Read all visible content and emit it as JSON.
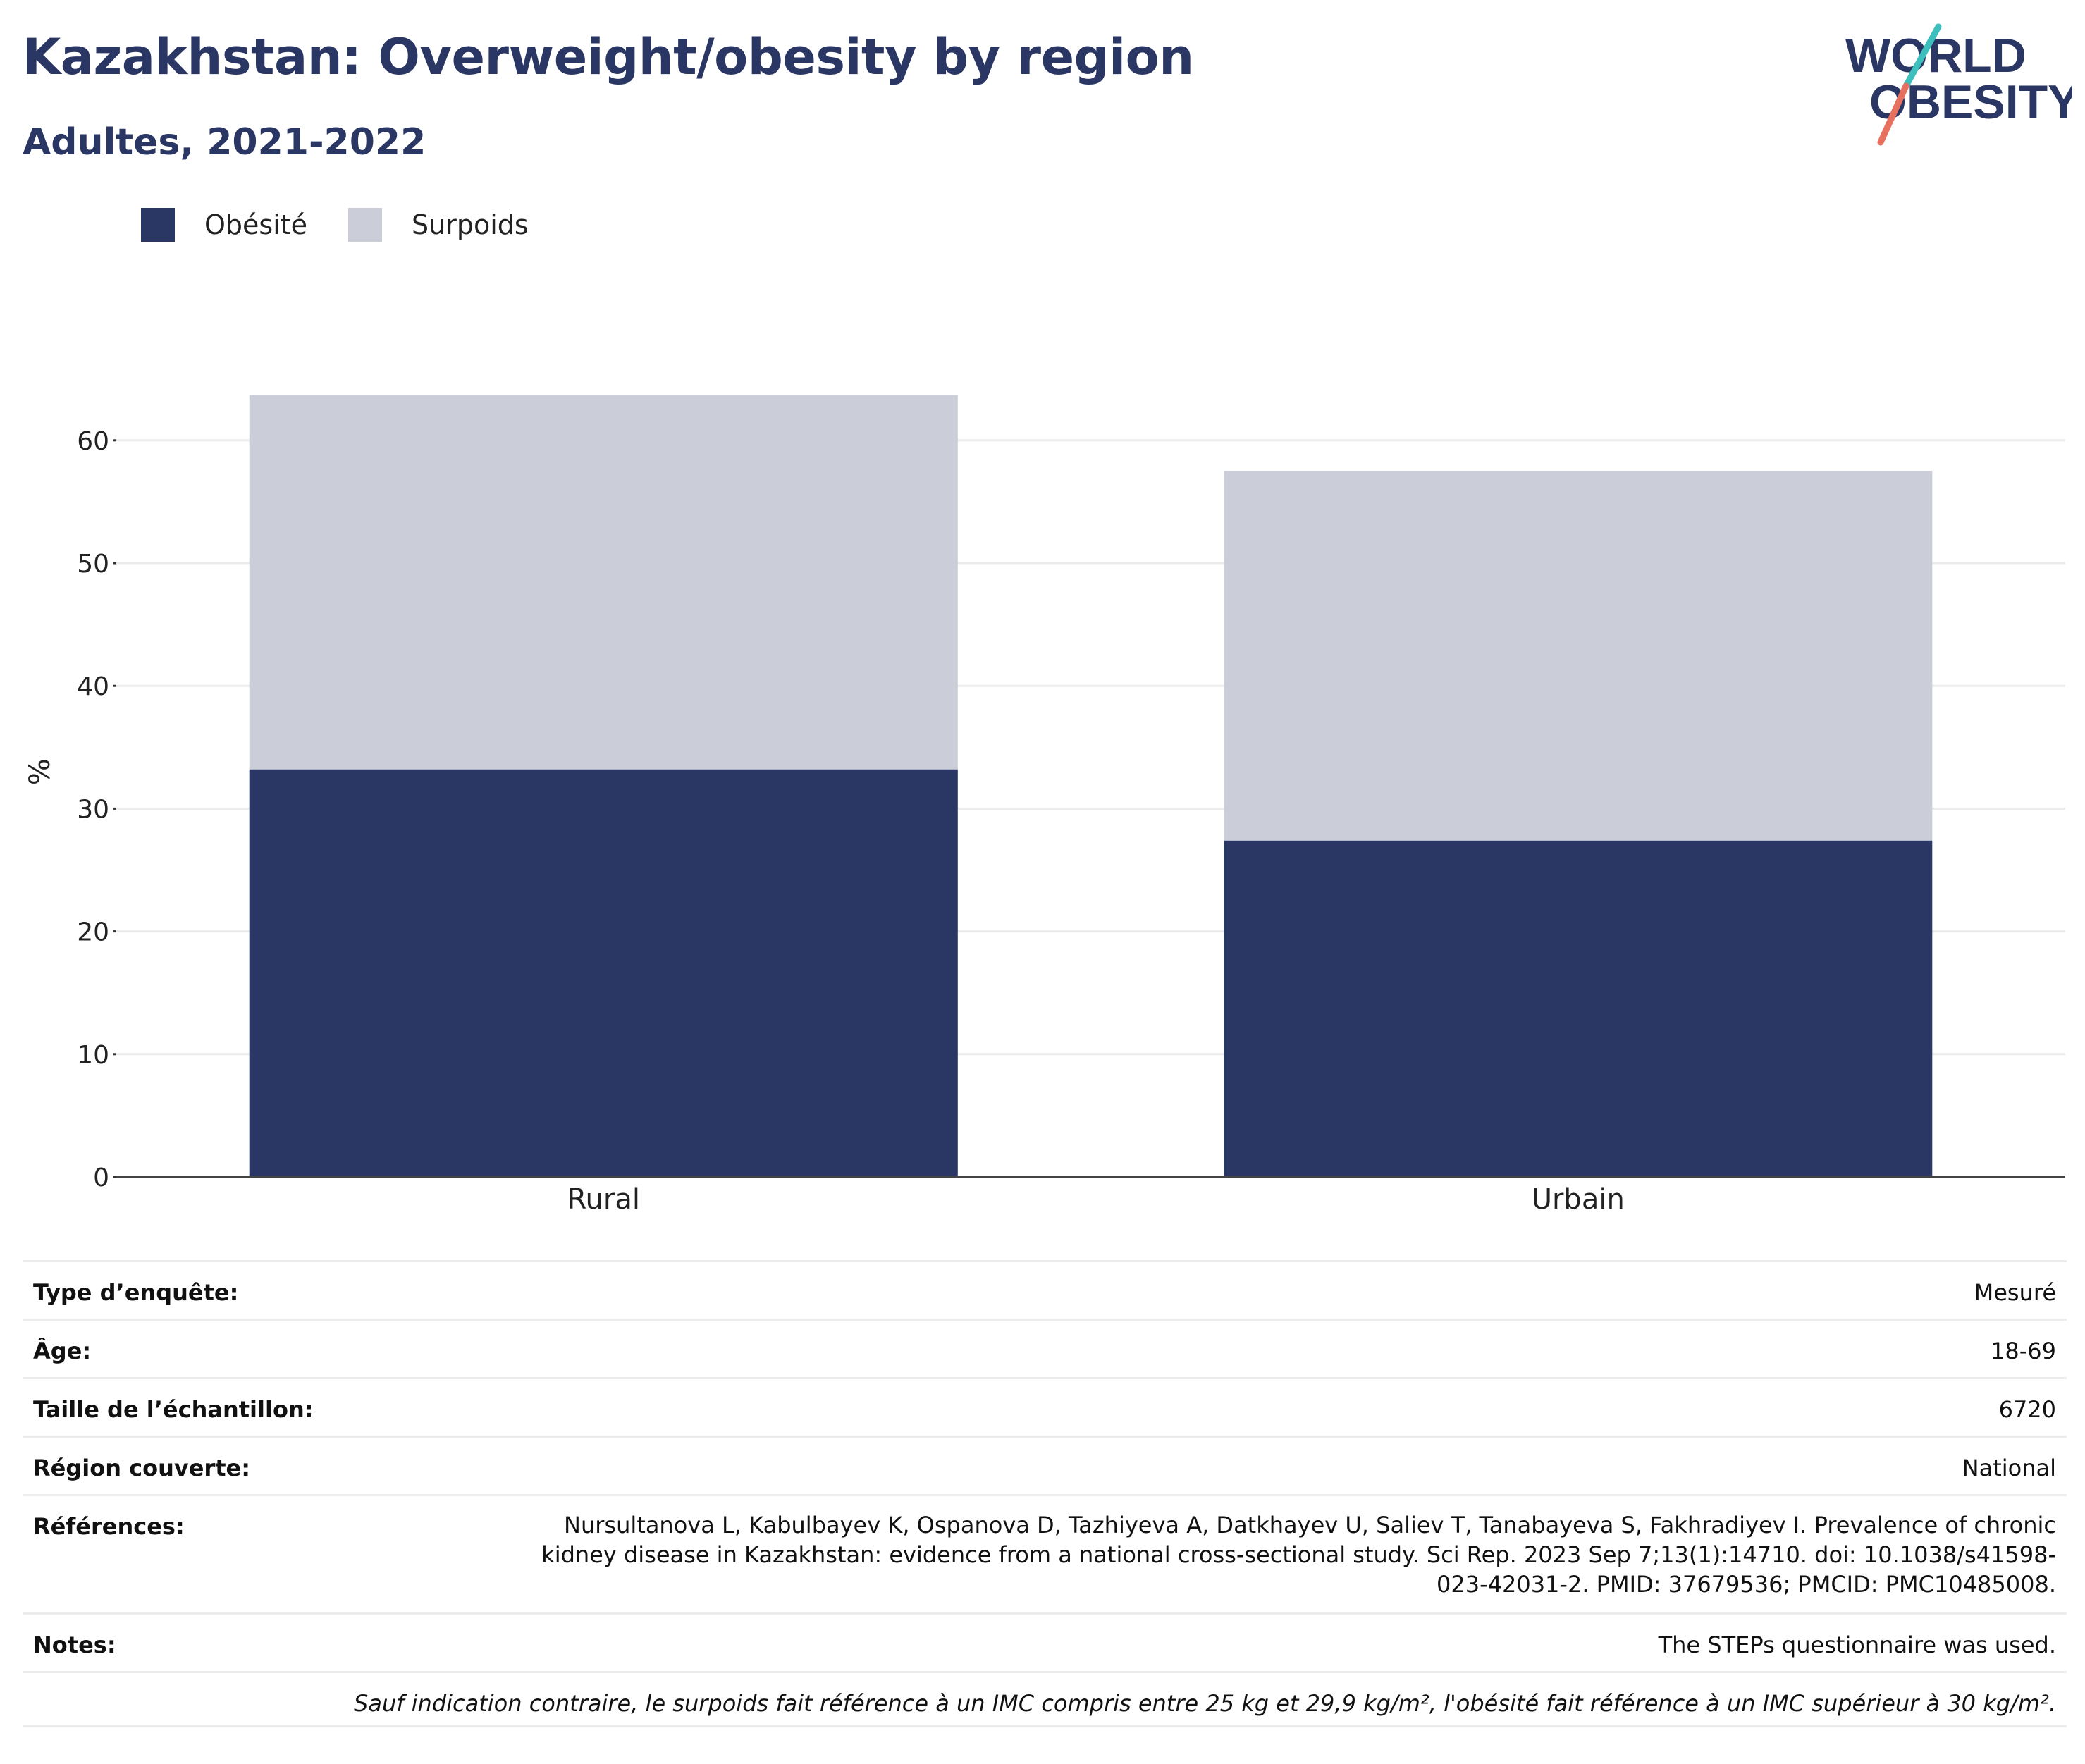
{
  "header": {
    "title": "Kazakhstan: Overweight/obesity by region",
    "subtitle": "Adultes, 2021-2022"
  },
  "logo": {
    "line1": "WORLD",
    "line2": "OBESITY"
  },
  "colors": {
    "obesity": "#2a3663",
    "overweight": "#cbcdd8",
    "title": "#2a3663",
    "logo_teal": "#3dbfbe",
    "logo_coral": "#e8705f"
  },
  "legend": {
    "items": [
      {
        "label": "Obésité",
        "color": "#2a3663"
      },
      {
        "label": "Surpoids",
        "color": "#cbcdd8"
      }
    ]
  },
  "chart_data": {
    "type": "bar",
    "stacked": true,
    "categories": [
      "Rural",
      "Urbain"
    ],
    "series": [
      {
        "name": "Obésité",
        "values": [
          33.2,
          27.4
        ],
        "color": "#2a3663"
      },
      {
        "name": "Surpoids",
        "values": [
          30.5,
          30.1
        ],
        "color": "#cbcdd8"
      }
    ],
    "ylabel": "%",
    "ylim": [
      0,
      65
    ],
    "yticks": [
      0,
      10,
      20,
      30,
      40,
      50,
      60
    ],
    "grid": true,
    "legend_position": "top-left"
  },
  "info": {
    "rows": [
      {
        "label": "Type d’enquête:",
        "value": "Mesuré"
      },
      {
        "label": "Âge:",
        "value": "18-69"
      },
      {
        "label": "Taille de l’échantillon:",
        "value": "6720"
      },
      {
        "label": "Région couverte:",
        "value": "National"
      }
    ],
    "references_label": "Références:",
    "references_lines": [
      "Nursultanova L, Kabulbayev K, Ospanova D, Tazhiyeva A, Datkhayev U, Saliev T, Tanabayeva S, Fakhradiyev I. Prevalence of chronic",
      "kidney disease in Kazakhstan: evidence from a national cross-sectional study. Sci Rep. 2023 Sep 7;13(1):14710. doi: 10.1038/s41598-",
      "023-42031-2. PMID: 37679536; PMCID: PMC10485008."
    ],
    "notes_label": "Notes:",
    "notes_value": "The STEPs questionnaire was used.",
    "footnote": "Sauf indication contraire, le surpoids fait référence à un IMC compris entre 25 kg et 29,9 kg/m², l'obésité fait référence à un IMC supérieur à 30 kg/m²."
  }
}
